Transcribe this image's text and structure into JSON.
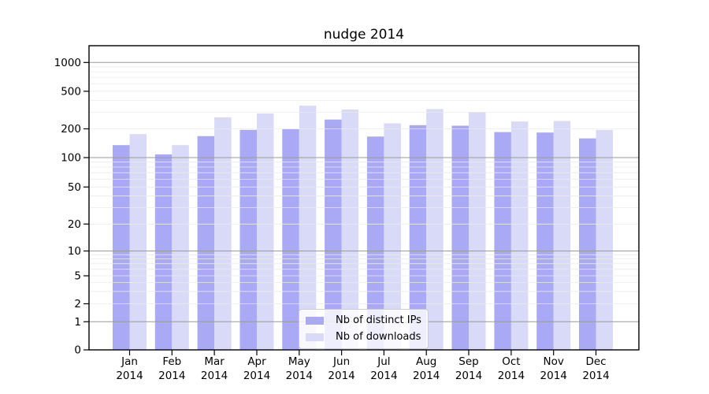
{
  "chart_data": {
    "type": "bar",
    "title": "nudge 2014",
    "categories": [
      "Jan",
      "Feb",
      "Mar",
      "Apr",
      "May",
      "Jun",
      "Jul",
      "Aug",
      "Sep",
      "Oct",
      "Nov",
      "Dec"
    ],
    "year_label": "2014",
    "series": [
      {
        "name": "Nb of distinct IPs",
        "color": "#a9a9f6",
        "values": [
          135,
          108,
          168,
          195,
          198,
          251,
          166,
          219,
          216,
          185,
          183,
          159
        ]
      },
      {
        "name": "Nb of downloads",
        "color": "#d9d9f8",
        "values": [
          176,
          135,
          265,
          291,
          352,
          320,
          229,
          324,
          301,
          239,
          242,
          195
        ]
      }
    ],
    "y_axis": {
      "scale": "symlog",
      "ticks": [
        0,
        1,
        2,
        5,
        10,
        20,
        50,
        100,
        200,
        500,
        1000
      ],
      "ylim": [
        0,
        1500
      ],
      "grid": "on"
    },
    "legend_position": "lower center",
    "colors": {
      "major_grid": "#9a9a9a",
      "minor_grid": "#ebebeb",
      "axis": "#000000",
      "text": "#000000"
    }
  }
}
